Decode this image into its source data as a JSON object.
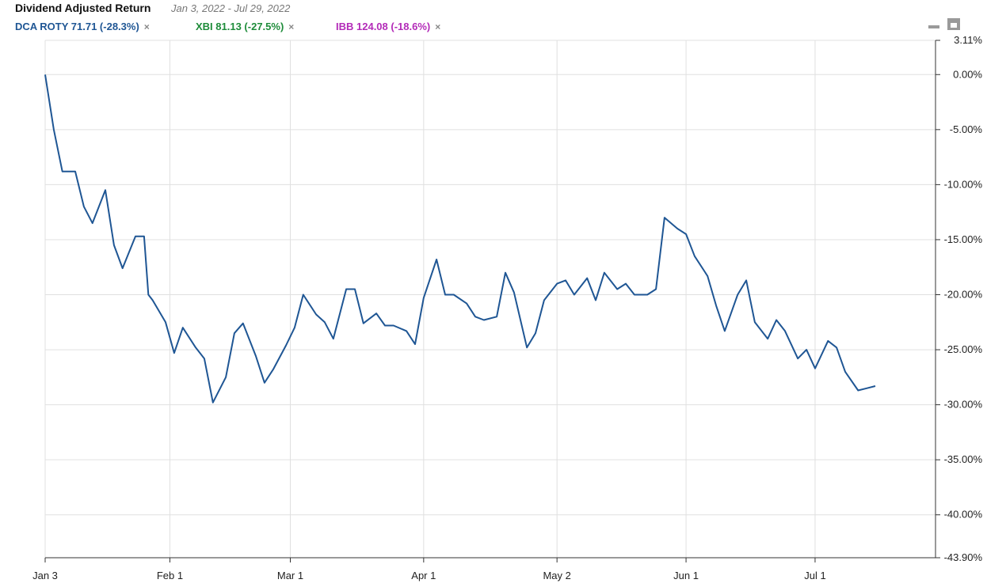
{
  "header": {
    "title": "Dividend Adjusted Return",
    "date_range": "Jan 3, 2022 - Jul 29, 2022",
    "series_labels": [
      {
        "text": "DCA ROTY 71.71 (-28.3%)",
        "color": "#1f5694"
      },
      {
        "text": "XBI 81.13 (-27.5%)",
        "color": "#1e8c3a"
      },
      {
        "text": "IBB 124.08 (-18.6%)",
        "color": "#b32bb8"
      }
    ],
    "remove_glyph": "×",
    "icons": [
      "minimize-icon",
      "maximize-icon"
    ]
  },
  "chart_data": {
    "type": "line",
    "x_ticks": [
      "Jan 3",
      "Feb 1",
      "Mar 1",
      "Apr 1",
      "May 2",
      "Jun 1",
      "Jul 1"
    ],
    "y_ticks": [
      "3.11%",
      "0.00%",
      "-5.00%",
      "-10.00%",
      "-15.00%",
      "-20.00%",
      "-25.00%",
      "-30.00%",
      "-35.00%",
      "-40.00%",
      "-43.90%"
    ],
    "ylim": [
      -43.9,
      3.11
    ],
    "xlim": [
      "2022-01-03",
      "2022-07-29"
    ],
    "y_axis": "right",
    "grid": true,
    "series": [
      {
        "name": "DCA ROTY",
        "color": "#1f5694",
        "points": [
          [
            "2022-01-03",
            0
          ],
          [
            "2022-01-05",
            -5
          ],
          [
            "2022-01-07",
            -8.8
          ],
          [
            "2022-01-10",
            -8.8
          ],
          [
            "2022-01-12",
            -12
          ],
          [
            "2022-01-14",
            -13.5
          ],
          [
            "2022-01-17",
            -10.5
          ],
          [
            "2022-01-19",
            -15.5
          ],
          [
            "2022-01-21",
            -17.6
          ],
          [
            "2022-01-24",
            -14.7
          ],
          [
            "2022-01-26",
            -14.7
          ],
          [
            "2022-01-27",
            -20
          ],
          [
            "2022-01-28",
            -20.5
          ],
          [
            "2022-01-31",
            -22.5
          ],
          [
            "2022-02-02",
            -25.3
          ],
          [
            "2022-02-04",
            -23
          ],
          [
            "2022-02-07",
            -24.8
          ],
          [
            "2022-02-09",
            -25.8
          ],
          [
            "2022-02-11",
            -29.8
          ],
          [
            "2022-02-14",
            -27.5
          ],
          [
            "2022-02-16",
            -23.5
          ],
          [
            "2022-02-18",
            -22.6
          ],
          [
            "2022-02-21",
            -25.6
          ],
          [
            "2022-02-23",
            -28
          ],
          [
            "2022-02-25",
            -26.8
          ],
          [
            "2022-02-28",
            -24.6
          ],
          [
            "2022-03-02",
            -23
          ],
          [
            "2022-03-04",
            -20
          ],
          [
            "2022-03-07",
            -21.8
          ],
          [
            "2022-03-09",
            -22.5
          ],
          [
            "2022-03-11",
            -24
          ],
          [
            "2022-03-14",
            -19.5
          ],
          [
            "2022-03-16",
            -19.5
          ],
          [
            "2022-03-18",
            -22.6
          ],
          [
            "2022-03-21",
            -21.7
          ],
          [
            "2022-03-23",
            -22.8
          ],
          [
            "2022-03-25",
            -22.8
          ],
          [
            "2022-03-28",
            -23.3
          ],
          [
            "2022-03-30",
            -24.5
          ],
          [
            "2022-04-01",
            -20.3
          ],
          [
            "2022-04-04",
            -16.8
          ],
          [
            "2022-04-06",
            -20
          ],
          [
            "2022-04-08",
            -20
          ],
          [
            "2022-04-11",
            -20.8
          ],
          [
            "2022-04-13",
            -22
          ],
          [
            "2022-04-15",
            -22.3
          ],
          [
            "2022-04-18",
            -22
          ],
          [
            "2022-04-20",
            -18
          ],
          [
            "2022-04-22",
            -19.8
          ],
          [
            "2022-04-25",
            -24.8
          ],
          [
            "2022-04-27",
            -23.5
          ],
          [
            "2022-04-29",
            -20.5
          ],
          [
            "2022-05-02",
            -19
          ],
          [
            "2022-05-04",
            -18.7
          ],
          [
            "2022-05-06",
            -20
          ],
          [
            "2022-05-09",
            -18.5
          ],
          [
            "2022-05-11",
            -20.5
          ],
          [
            "2022-05-13",
            -18
          ],
          [
            "2022-05-16",
            -19.5
          ],
          [
            "2022-05-18",
            -19
          ],
          [
            "2022-05-20",
            -20
          ],
          [
            "2022-05-23",
            -20
          ],
          [
            "2022-05-25",
            -19.5
          ],
          [
            "2022-05-27",
            -13
          ],
          [
            "2022-05-30",
            -14
          ],
          [
            "2022-06-01",
            -14.5
          ],
          [
            "2022-06-03",
            -16.5
          ],
          [
            "2022-06-06",
            -18.3
          ],
          [
            "2022-06-08",
            -21
          ],
          [
            "2022-06-10",
            -23.3
          ],
          [
            "2022-06-13",
            -20
          ],
          [
            "2022-06-15",
            -18.7
          ],
          [
            "2022-06-17",
            -22.5
          ],
          [
            "2022-06-20",
            -24
          ],
          [
            "2022-06-22",
            -22.3
          ],
          [
            "2022-06-24",
            -23.3
          ],
          [
            "2022-06-27",
            -25.8
          ],
          [
            "2022-06-29",
            -25
          ],
          [
            "2022-07-01",
            -26.7
          ],
          [
            "2022-07-04",
            -24.2
          ],
          [
            "2022-07-06",
            -24.8
          ],
          [
            "2022-07-08",
            -27
          ],
          [
            "2022-07-11",
            -28.7
          ],
          [
            "2022-07-13",
            -28.5
          ],
          [
            "2022-07-15",
            -28.3
          ]
        ]
      }
    ]
  }
}
